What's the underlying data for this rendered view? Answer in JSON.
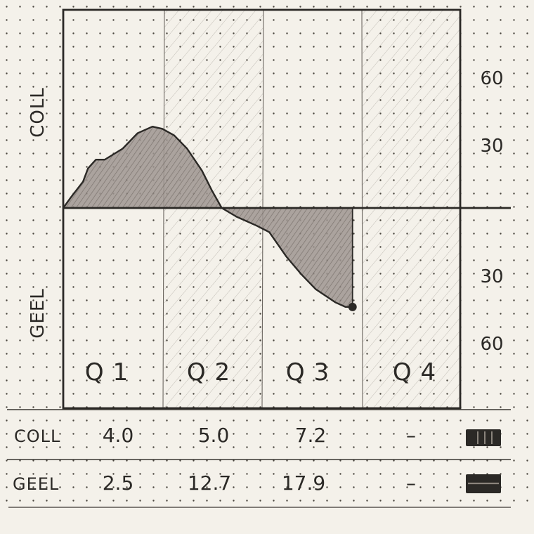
{
  "chart_data": {
    "type": "area",
    "categories": [
      "Q 1",
      "Q 2",
      "Q 3",
      "Q 4"
    ],
    "x": [
      0.0,
      0.08,
      0.2,
      0.25,
      0.33,
      0.42,
      0.6,
      0.75,
      0.9,
      1.0,
      1.12,
      1.25,
      1.4,
      1.5,
      1.6,
      1.75,
      1.95,
      2.08,
      2.25,
      2.4,
      2.55,
      2.75,
      2.85,
      2.92
    ],
    "y": [
      0,
      5,
      12,
      18,
      22,
      22,
      27,
      34,
      37,
      36,
      33,
      27,
      17,
      8,
      0,
      -4,
      -8,
      -11,
      -22,
      -30,
      -37,
      -43,
      -45,
      -45
    ],
    "series": [
      {
        "name": "COLL",
        "values": [
          4.0,
          5.0,
          7.2,
          null
        ],
        "marker": "|||"
      },
      {
        "name": "GEEL",
        "values": [
          2.5,
          12.7,
          17.9,
          null
        ],
        "marker": "="
      }
    ],
    "upper_axis": {
      "label": "COLL",
      "ticks": [
        30,
        60
      ]
    },
    "lower_axis": {
      "label": "GEEL",
      "ticks": [
        30,
        60
      ]
    },
    "ylim": [
      -75,
      75
    ],
    "grid": "dotted"
  },
  "table": {
    "rows": [
      {
        "label": "COLL",
        "cells": [
          "4.0",
          "5.0",
          "7.2",
          "–"
        ]
      },
      {
        "label": "GEEL",
        "cells": [
          "2.5",
          "12.7",
          "17.9",
          "–"
        ]
      }
    ]
  },
  "colors": {
    "ink": "#2b2926",
    "fill": "#8e8580",
    "paper": "#f4f1ea",
    "dot": "#4a463f"
  }
}
